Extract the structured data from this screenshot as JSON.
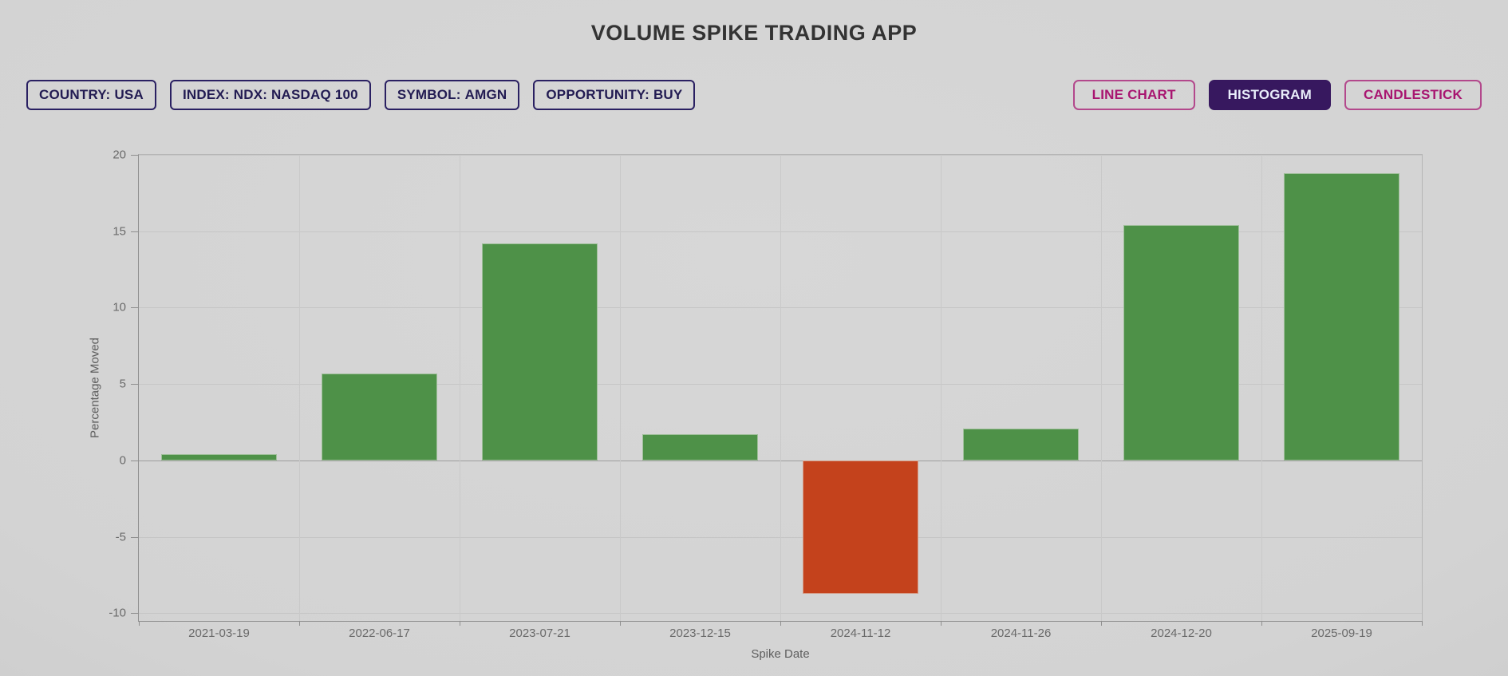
{
  "app": {
    "title": "VOLUME SPIKE TRADING APP"
  },
  "toolbar": {
    "filters": [
      {
        "prefix": "COUNTRY:",
        "value": "USA"
      },
      {
        "prefix": "INDEX:",
        "value": "NDX: NASDAQ 100"
      },
      {
        "prefix": "SYMBOL:",
        "value": "AMGN"
      },
      {
        "prefix": "OPPORTUNITY:",
        "value": "BUY"
      }
    ],
    "chart_types": [
      {
        "label": "LINE CHART",
        "active": false
      },
      {
        "label": "HISTOGRAM",
        "active": true
      },
      {
        "label": "CANDLESTICK",
        "active": false
      }
    ],
    "active_chart_type": "HISTOGRAM"
  },
  "colors": {
    "positive_bar": "#4e9148",
    "negative_bar": "#c4421c",
    "accent_dark_indigo": "#2a2062",
    "accent_pink": "#a81570",
    "active_button_bg": "#37185f",
    "background_gray": "#d2d2d2"
  },
  "chart_data": {
    "type": "bar",
    "xlabel": "Spike Date",
    "ylabel": "Percentage Moved",
    "categories": [
      "2021-03-19",
      "2022-06-17",
      "2023-07-21",
      "2023-12-15",
      "2024-11-12",
      "2024-11-26",
      "2024-12-20",
      "2025-09-19"
    ],
    "values": [
      0.4,
      5.7,
      14.2,
      1.7,
      -8.7,
      2.1,
      15.4,
      18.8
    ],
    "ylim": [
      -10.5,
      20
    ],
    "yticks": [
      20,
      15,
      10,
      5,
      0,
      -5,
      -10
    ],
    "grid": true,
    "legend": false,
    "bar_color_rule": "green if positive, red if negative"
  }
}
